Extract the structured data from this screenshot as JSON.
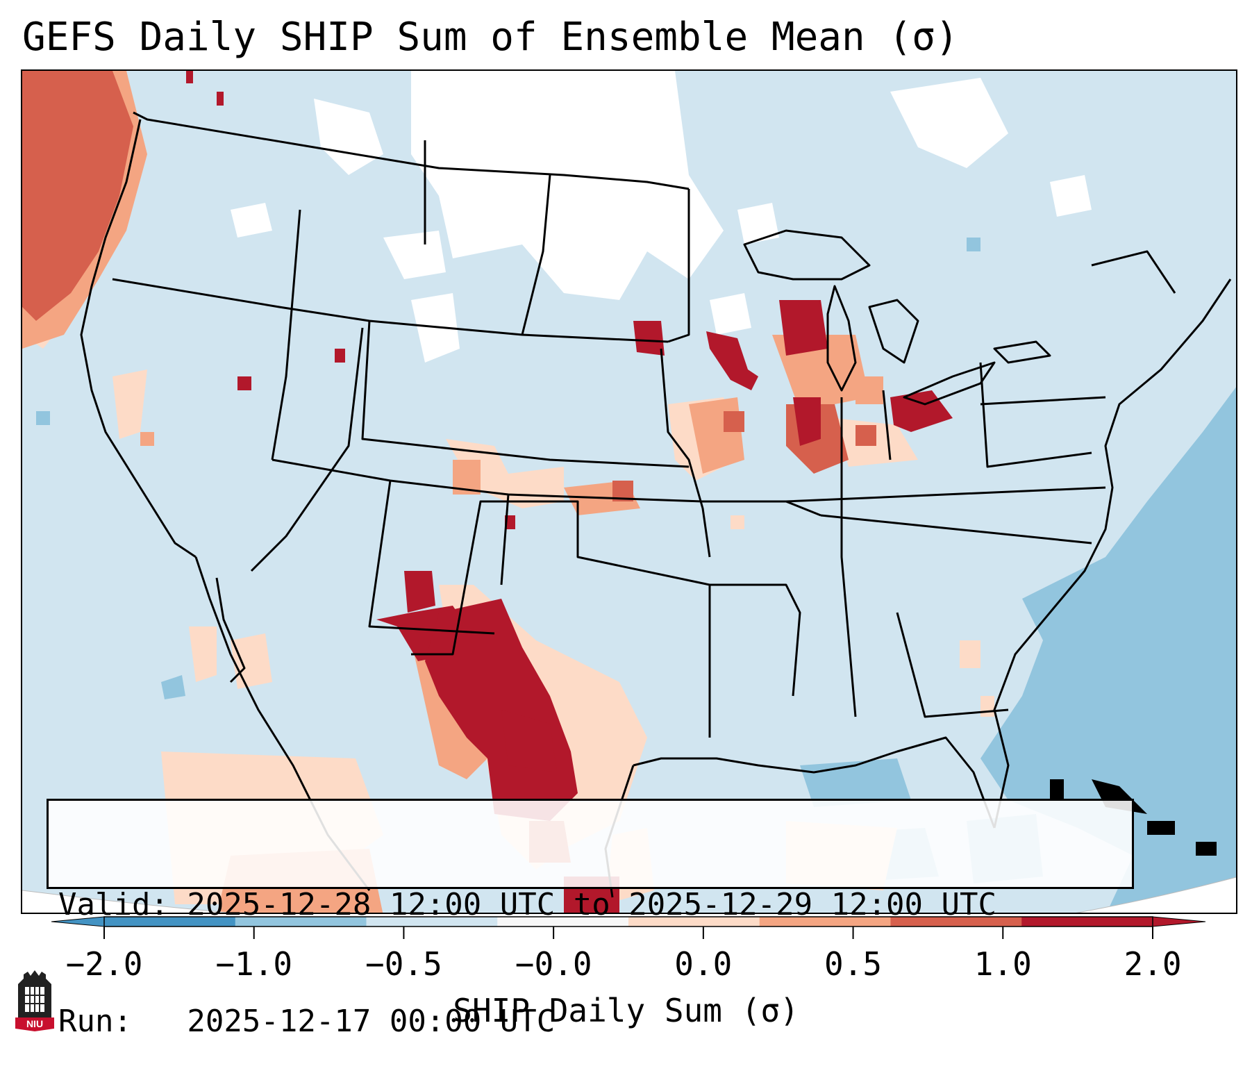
{
  "title": "GEFS Daily SHIP Sum of Ensemble Mean (σ)",
  "info": {
    "valid_line": "Valid: 2025-12-28 12:00 UTC to 2025-12-29 12:00 UTC",
    "run_line": "Run:   2025-12-17 00:00 UTC"
  },
  "colorbar": {
    "label": "SHIP Daily Sum (σ)",
    "ticks": [
      "−2.0",
      "−1.0",
      "−0.5",
      "−0.0",
      "0.0",
      "0.5",
      "1.0",
      "2.0"
    ],
    "colors": [
      "#4393c3",
      "#92c5de",
      "#d1e5f0",
      "#f7f7f7",
      "#fddbc7",
      "#f4a582",
      "#d6604d",
      "#b2182b"
    ],
    "extend": "both"
  },
  "logo": {
    "text": "NIU",
    "icon": "university-tower-logo"
  },
  "map": {
    "region": "CONUS",
    "anomaly_regions": [
      {
        "name": "pacific-northwest-coast",
        "category": "high",
        "color": "#d6604d"
      },
      {
        "name": "upper-midwest",
        "category": "very-high",
        "color": "#b2182b"
      },
      {
        "name": "ohio-valley",
        "category": "very-high",
        "color": "#b2182b"
      },
      {
        "name": "southwest-rio-grande",
        "category": "very-high",
        "color": "#b2182b"
      },
      {
        "name": "atlantic-offshore",
        "category": "low",
        "color": "#92c5de"
      }
    ]
  }
}
